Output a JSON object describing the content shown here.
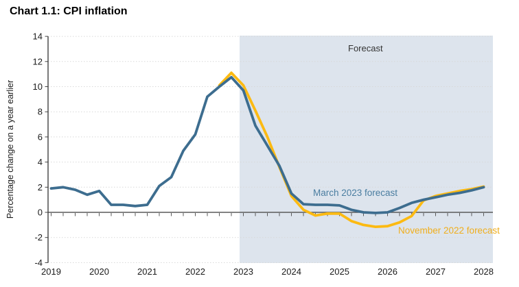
{
  "title": "Chart 1.1: CPI inflation",
  "chart_data": {
    "type": "line",
    "title": "Chart 1.1: CPI inflation",
    "xlabel": "",
    "ylabel": "Percentage change on a year earlier",
    "ylim": [
      -4,
      14
    ],
    "yticks": [
      14,
      12,
      10,
      8,
      6,
      4,
      2,
      0,
      -2,
      -4
    ],
    "xticks": [
      "2019",
      "2020",
      "2021",
      "2022",
      "2023",
      "2024",
      "2025",
      "2026",
      "2027",
      "2028"
    ],
    "frequency": "quarterly",
    "grid": "horizontal-dotted",
    "legend_position": "inline-annotations",
    "forecast_label": "Forecast",
    "forecast_region": {
      "start": "2023 Q1",
      "end": "2028 Q1",
      "band_color": "#dde4ed"
    },
    "series": [
      {
        "name": "March 2023 forecast",
        "color": "#3d6d8f",
        "start": "2019 Q1",
        "start_index": 0,
        "values": [
          1.9,
          2.0,
          1.8,
          1.4,
          1.7,
          0.6,
          0.6,
          0.5,
          0.6,
          2.1,
          2.8,
          4.9,
          6.2,
          9.2,
          10.0,
          10.75,
          9.7,
          6.9,
          5.3,
          3.7,
          1.5,
          0.65,
          0.6,
          0.6,
          0.55,
          0.2,
          0.0,
          -0.05,
          0.0,
          0.35,
          0.75,
          1.0,
          1.2,
          1.4,
          1.55,
          1.75,
          2.0
        ]
      },
      {
        "name": "November 2022 forecast",
        "color": "#fcba12",
        "start": "2022 Q3",
        "start_index": 14,
        "values": [
          10.1,
          11.1,
          10.1,
          8.1,
          6.0,
          3.6,
          1.3,
          0.2,
          -0.25,
          -0.1,
          -0.1,
          -0.7,
          -1.0,
          -1.15,
          -1.1,
          -0.8,
          -0.3,
          0.95,
          1.3,
          1.5,
          1.7,
          1.85,
          2.05
        ]
      }
    ]
  }
}
